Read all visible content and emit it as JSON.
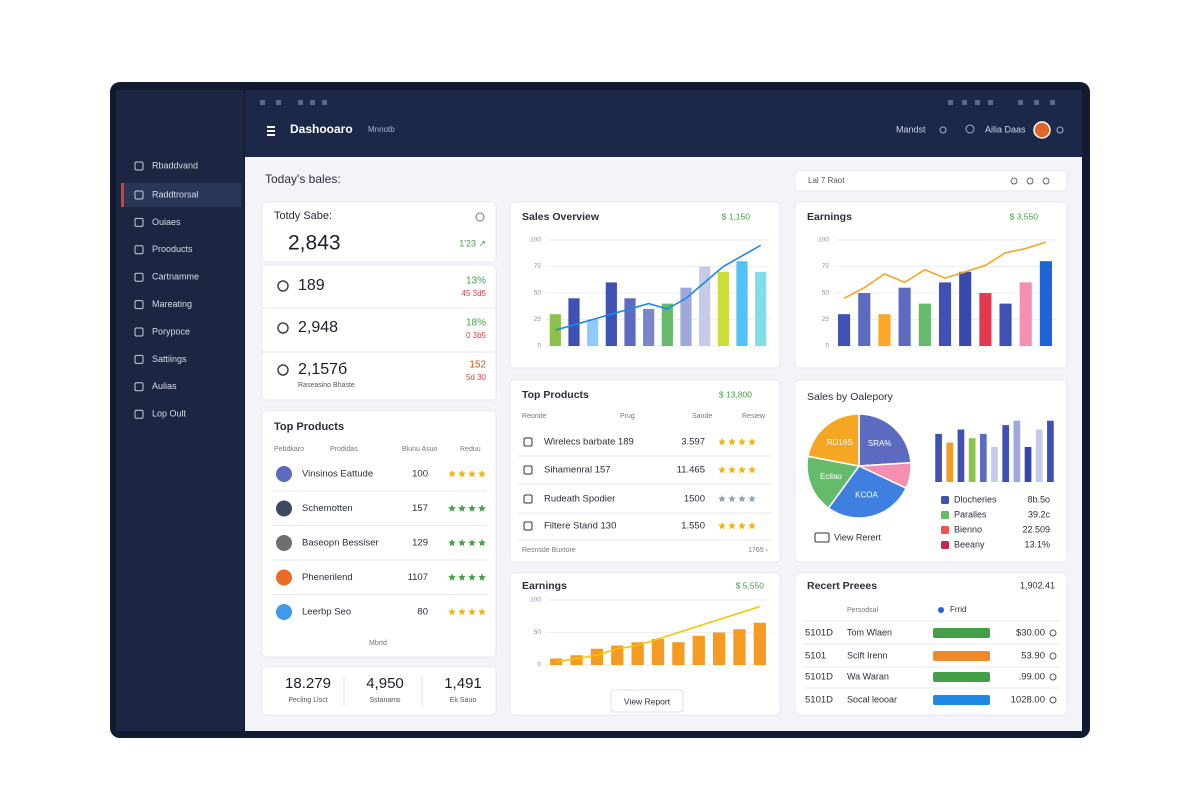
{
  "topbar": {
    "title": "Dashooaro",
    "subtitle": "Mnnotb",
    "search": "Mandst",
    "user": "Ailia Daas"
  },
  "sidebar": {
    "items": [
      "Rbaddvand",
      "Raddtrorsal",
      "Ouiaes",
      "Prooducts",
      "Cartnamme",
      "Mareating",
      "Porypoce",
      "Sattiings",
      "Aulias",
      "Lop Oult"
    ],
    "active": 1
  },
  "page": {
    "heading": "Today's bales:",
    "range": "Lal 7 Raot"
  },
  "today_sales": {
    "label": "Totdy Sabe:",
    "value": "2,843",
    "change": "1'23 ↗"
  },
  "stats": [
    {
      "value": "189",
      "change": "13%",
      "sub": "45 3d5",
      "change_color": "#43a047"
    },
    {
      "value": "2,948",
      "change": "18%",
      "sub": "0 3b5",
      "change_color": "#43a047"
    },
    {
      "value": "2,157б",
      "change": "152",
      "sub": "5d 30",
      "label": "Raseasino Bhaste",
      "change_color": "#e65100"
    }
  ],
  "left_products": {
    "title": "Top Products",
    "columns": [
      "Pebdkaro",
      "Prodidas",
      "Blunu Asuo",
      "Reduu"
    ],
    "rows": [
      {
        "name": "Vinsinos Eattude",
        "value": "100",
        "star_color": "#f5b400",
        "icon_color": "#3f51b5"
      },
      {
        "name": "Schemotten",
        "value": "157",
        "star_color": "#43a047",
        "icon_color": "#1a2744"
      },
      {
        "name": "Baseopn Bessiser",
        "value": "129",
        "star_color": "#43a047",
        "icon_color": "#555555"
      },
      {
        "name": "Phenerilend",
        "value": "1107",
        "star_color": "#43a047",
        "icon_color": "#e65100"
      },
      {
        "name": "Leerbp Seo",
        "value": "80",
        "star_color": "#f5b400",
        "icon_color": "#1e88e5"
      }
    ],
    "footer": "Mbrtd"
  },
  "summary": [
    {
      "value": "18.279",
      "label": "Pecling Llsct"
    },
    {
      "value": "4,950",
      "label": "Sstanams"
    },
    {
      "value": "1,491",
      "label": "Ek Sauo"
    }
  ],
  "sales_overview": {
    "type": "bar",
    "title": "Sales Overview",
    "total": "$ 1,150",
    "values": [
      30,
      45,
      25,
      60,
      45,
      35,
      40,
      55,
      75,
      70,
      80,
      70
    ],
    "colors": [
      "#8bc34a",
      "#3f51b5",
      "#90caf9",
      "#3f51b5",
      "#5c6bc0",
      "#7986cb",
      "#66bb6a",
      "#9fa8da",
      "#c5cae9",
      "#cddc39",
      "#4fc3f7",
      "#80deea"
    ],
    "line": {
      "color": "#1e88e5",
      "values": [
        15,
        20,
        25,
        30,
        35,
        40,
        35,
        45,
        60,
        75,
        85,
        95
      ]
    },
    "ylim": [
      0,
      100
    ],
    "yticks": [
      0,
      25,
      50,
      75,
      100
    ]
  },
  "earnings": {
    "type": "bar",
    "title": "Earnings",
    "total": "$ 3,550",
    "values": [
      30,
      50,
      30,
      55,
      40,
      60,
      70,
      50,
      40,
      60,
      80
    ],
    "colors": [
      "#3f51b5",
      "#5c6bc0",
      "#ffa726",
      "#5c6bc0",
      "#66bb6a",
      "#3f51b5",
      "#3949ab",
      "#e53950",
      "#3f51b5",
      "#f48fb1",
      "#1e63d6"
    ],
    "line": {
      "color": "#f5a623",
      "values": [
        45,
        55,
        68,
        60,
        72,
        64,
        70,
        76,
        88,
        92,
        98
      ]
    },
    "ylim": [
      0,
      100
    ],
    "yticks": [
      0,
      25,
      50,
      75,
      100
    ]
  },
  "top_products": {
    "title": "Top Products",
    "total": "$ 13,800",
    "columns": [
      "Reonde",
      "Prug",
      "Sande",
      "Resiew"
    ],
    "rows": [
      {
        "name": "Wirelecs barbate 189",
        "value": "3.597",
        "star_color": "#f5b400"
      },
      {
        "name": "Sihamenral 157",
        "value": "11.465",
        "star_color": "#f5b400"
      },
      {
        "name": "Rudeath Spodier",
        "value": "1500",
        "star_color": "#90a4ae"
      },
      {
        "name": "Filtere Stand 130",
        "value": "1.550",
        "star_color": "#f5b400"
      }
    ],
    "footer_left": "Resnsde Buxtore",
    "footer_right": "1765 ›"
  },
  "earnings_bottom": {
    "type": "bar",
    "title": "Earnings",
    "total": "$ 5,550",
    "values": [
      10,
      15,
      25,
      30,
      35,
      40,
      35,
      45,
      50,
      55,
      65
    ],
    "colors": [
      "#f59a23",
      "#f59a23",
      "#f59a23",
      "#f59a23",
      "#f59a23",
      "#f59a23",
      "#f59a23",
      "#f59a23",
      "#f59a23",
      "#f59a23",
      "#f59a23"
    ],
    "line": {
      "color": "#f5c400",
      "values": [
        5,
        10,
        15,
        25,
        30,
        40,
        50,
        60,
        70,
        80,
        90
      ]
    },
    "ylim": [
      0,
      100
    ],
    "yticks": [
      0,
      50,
      100
    ],
    "button": "View Report"
  },
  "sales_by_category": {
    "title": "Sales by Oalepory",
    "pie": {
      "type": "pie",
      "values": [
        24,
        8,
        28,
        18,
        22
      ],
      "colors": [
        "#5c6bc0",
        "#f48fb1",
        "#3f7fe0",
        "#66bb6a",
        "#f5a623"
      ],
      "labels": [
        "SRA%",
        null,
        "KCOA",
        "Ecilao",
        "RD16S"
      ]
    },
    "bars": {
      "type": "bar",
      "values": [
        55,
        45,
        60,
        50,
        55,
        40,
        65,
        70,
        40,
        60,
        70
      ],
      "colors": [
        "#3f51b5",
        "#f59a23",
        "#3f51b5",
        "#8bc34a",
        "#5c6bc0",
        "#c5cae9",
        "#3f51b5",
        "#9fa8da",
        "#3949ab",
        "#c5cae9",
        "#3f51b5"
      ],
      "ylim": [
        0,
        80
      ]
    },
    "legend": [
      {
        "name": "Dlocheries",
        "value": "8b.5о",
        "color": "#3f51b5"
      },
      {
        "name": "Paralles",
        "value": "39.2c",
        "color": "#66bb6a"
      },
      {
        "name": "Bienno",
        "value": "22.509",
        "color": "#ef5350"
      },
      {
        "name": "Beeany",
        "value": "13.1%",
        "color": "#c62850"
      }
    ],
    "link": "View Rerert"
  },
  "recent": {
    "title": "Recert Preees",
    "total": "1,902.41",
    "columns": [
      "Persodsal",
      "Frrid"
    ],
    "rows": [
      {
        "id": "5101D",
        "name": "Tom Wlaen",
        "amount": "$30.00",
        "status_color": "#43a047"
      },
      {
        "id": "5101",
        "name": "Scift Irenn",
        "amount": "53.90",
        "status_color": "#ef8a2a"
      },
      {
        "id": "5101D",
        "name": "Wa Waran",
        "amount": ".99.00",
        "status_color": "#43a047"
      },
      {
        "id": "5101D",
        "name": "Socal leooar",
        "amount": "1028.00",
        "status_color": "#1e88e5"
      }
    ]
  }
}
